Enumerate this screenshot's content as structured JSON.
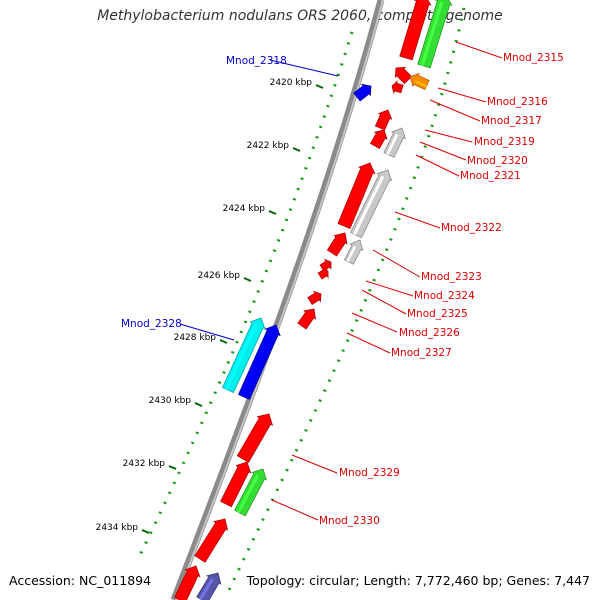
{
  "title": "Methylobacterium nodulans ORS 2060, complete genome",
  "accession": "Accession: NC_011894",
  "topology": "Topology: circular; Length: 7,772,460 bp; Genes: 7,447",
  "colors": {
    "backbone": "#8a8a8a",
    "red": "#ff0000",
    "green": "#33dd33",
    "orange": "#ff8800",
    "gray": "#c8c8c8",
    "blue": "#0000ee",
    "cyan": "#00eeee",
    "navy": "#5555aa",
    "dots": "#119911",
    "label_red": "#dd0000",
    "label_blue": "#0000cc"
  },
  "ticks": [
    "2420 kbp",
    "2422 kbp",
    "2424 kbp",
    "2426 kbp",
    "2428 kbp",
    "2430 kbp",
    "2432 kbp",
    "2434 kbp"
  ],
  "gene_labels_right": [
    "Mnod_2315",
    "Mnod_2316",
    "Mnod_2317",
    "Mnod_2319",
    "Mnod_2320",
    "Mnod_2321",
    "Mnod_2322",
    "Mnod_2323",
    "Mnod_2324",
    "Mnod_2325",
    "Mnod_2326",
    "Mnod_2327",
    "Mnod_2329",
    "Mnod_2330"
  ],
  "gene_labels_left": [
    "Mnod_2318",
    "Mnod_2328"
  ]
}
